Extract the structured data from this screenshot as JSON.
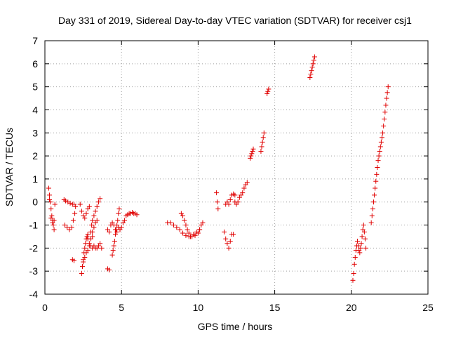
{
  "chart_data": {
    "type": "scatter",
    "title": "Day 331 of 2019, Sidereal Day-to-day VTEC variation (SDTVAR) for receiver csj1",
    "xlabel": "GPS time / hours",
    "ylabel": "SDTVAR / TECUs",
    "xlim": [
      0,
      25
    ],
    "ylim": [
      -4,
      7
    ],
    "xticks": [
      0,
      5,
      10,
      15,
      20,
      25
    ],
    "yticks": [
      -4,
      -3,
      -2,
      -1,
      0,
      1,
      2,
      3,
      4,
      5,
      6,
      7
    ],
    "xtick_labels": [
      "0",
      "5",
      "10",
      "15",
      "20",
      "25"
    ],
    "ytick_labels": [
      "-4",
      "-3",
      "-2",
      "-1",
      "0",
      "1",
      "2",
      "3",
      "4",
      "5",
      "6",
      "7"
    ],
    "grid": true,
    "marker": "plus",
    "color": "#e00000",
    "series": [
      {
        "name": "csj1",
        "segments": [
          [
            [
              0.25,
              0.6
            ],
            [
              0.3,
              0.3
            ],
            [
              0.35,
              0.0
            ],
            [
              0.4,
              -0.3
            ],
            [
              0.45,
              -0.6
            ],
            [
              0.5,
              -0.8
            ],
            [
              0.55,
              -1.0
            ],
            [
              0.6,
              -1.2
            ]
          ],
          [
            [
              0.3,
              0.1
            ],
            [
              0.4,
              -0.7
            ],
            [
              0.5,
              -0.9
            ],
            [
              0.6,
              -0.8
            ],
            [
              0.65,
              -0.1
            ]
          ],
          [
            [
              1.25,
              0.1
            ],
            [
              1.35,
              0.05
            ],
            [
              1.5,
              0.0
            ],
            [
              1.65,
              -0.05
            ],
            [
              1.8,
              -0.1
            ],
            [
              1.9,
              -0.1
            ]
          ],
          [
            [
              1.3,
              -1.0
            ],
            [
              1.45,
              -1.1
            ],
            [
              1.6,
              -1.2
            ],
            [
              1.75,
              -1.1
            ],
            [
              1.85,
              -0.8
            ],
            [
              1.95,
              -0.5
            ],
            [
              2.0,
              -0.2
            ]
          ],
          [
            [
              1.8,
              -2.5
            ],
            [
              1.9,
              -2.55
            ]
          ],
          [
            [
              2.3,
              -0.1
            ],
            [
              2.4,
              -0.4
            ],
            [
              2.5,
              -0.6
            ],
            [
              2.6,
              -0.7
            ],
            [
              2.7,
              -0.5
            ],
            [
              2.8,
              -0.3
            ],
            [
              2.9,
              -0.2
            ]
          ],
          [
            [
              2.4,
              -3.1
            ],
            [
              2.45,
              -2.8
            ],
            [
              2.5,
              -2.5
            ],
            [
              2.55,
              -2.2
            ],
            [
              2.6,
              -2.0
            ],
            [
              2.65,
              -1.8
            ],
            [
              2.7,
              -1.6
            ],
            [
              2.75,
              -1.5
            ],
            [
              2.8,
              -1.4
            ]
          ],
          [
            [
              2.5,
              -2.6
            ],
            [
              2.6,
              -2.4
            ],
            [
              2.7,
              -2.2
            ],
            [
              2.8,
              -2.1
            ],
            [
              2.9,
              -1.9
            ],
            [
              3.0,
              -1.6
            ],
            [
              3.1,
              -1.5
            ]
          ],
          [
            [
              2.8,
              -1.6
            ],
            [
              2.9,
              -1.8
            ],
            [
              3.0,
              -1.9
            ],
            [
              3.1,
              -2.0
            ],
            [
              3.2,
              -1.9
            ],
            [
              3.3,
              -2.0
            ],
            [
              3.4,
              -2.0
            ],
            [
              3.5,
              -1.9
            ],
            [
              3.6,
              -1.8
            ],
            [
              3.7,
              -2.0
            ]
          ],
          [
            [
              3.0,
              -1.3
            ],
            [
              3.05,
              -1.0
            ],
            [
              3.1,
              -0.8
            ],
            [
              3.2,
              -0.6
            ],
            [
              3.3,
              -0.4
            ],
            [
              3.4,
              -0.2
            ],
            [
              3.5,
              0.0
            ],
            [
              3.6,
              0.15
            ]
          ],
          [
            [
              3.1,
              -1.3
            ],
            [
              3.2,
              -1.1
            ],
            [
              3.3,
              -0.9
            ],
            [
              3.4,
              -0.8
            ]
          ],
          [
            [
              4.1,
              -2.9
            ],
            [
              4.2,
              -2.95
            ]
          ],
          [
            [
              4.1,
              -1.2
            ],
            [
              4.2,
              -1.3
            ],
            [
              4.3,
              -1.0
            ],
            [
              4.4,
              -0.9
            ]
          ],
          [
            [
              4.4,
              -2.3
            ],
            [
              4.45,
              -2.1
            ],
            [
              4.5,
              -1.9
            ],
            [
              4.55,
              -1.7
            ],
            [
              4.6,
              -1.4
            ],
            [
              4.65,
              -1.2
            ],
            [
              4.7,
              -1.0
            ],
            [
              4.75,
              -0.8
            ],
            [
              4.8,
              -0.5
            ],
            [
              4.85,
              -0.3
            ]
          ],
          [
            [
              4.5,
              -1.0
            ],
            [
              4.6,
              -1.2
            ],
            [
              4.7,
              -1.3
            ],
            [
              4.8,
              -1.1
            ],
            [
              4.9,
              -1.2
            ],
            [
              5.0,
              -1.1
            ],
            [
              5.1,
              -0.9
            ],
            [
              5.2,
              -0.8
            ],
            [
              5.3,
              -0.6
            ],
            [
              5.4,
              -0.55
            ],
            [
              5.5,
              -0.5
            ],
            [
              5.6,
              -0.5
            ],
            [
              5.7,
              -0.45
            ],
            [
              5.8,
              -0.5
            ],
            [
              5.9,
              -0.5
            ],
            [
              6.0,
              -0.55
            ]
          ],
          [
            [
              8.0,
              -0.9
            ],
            [
              8.2,
              -0.9
            ],
            [
              8.4,
              -1.0
            ],
            [
              8.6,
              -1.1
            ],
            [
              8.8,
              -1.2
            ],
            [
              9.0,
              -1.35
            ],
            [
              9.2,
              -1.45
            ],
            [
              9.4,
              -1.5
            ],
            [
              9.6,
              -1.5
            ],
            [
              9.8,
              -1.45
            ],
            [
              10.0,
              -1.35
            ],
            [
              10.1,
              -1.2
            ],
            [
              10.2,
              -1.0
            ],
            [
              10.3,
              -0.9
            ]
          ],
          [
            [
              8.9,
              -0.5
            ],
            [
              9.0,
              -0.6
            ],
            [
              9.1,
              -0.8
            ],
            [
              9.2,
              -1.0
            ],
            [
              9.3,
              -1.2
            ],
            [
              9.4,
              -1.35
            ],
            [
              9.5,
              -1.5
            ],
            [
              9.7,
              -1.4
            ],
            [
              9.9,
              -1.3
            ],
            [
              10.1,
              -1.2
            ]
          ],
          [
            [
              11.2,
              0.4
            ],
            [
              11.25,
              0.0
            ],
            [
              11.3,
              -0.3
            ]
          ],
          [
            [
              11.7,
              -1.3
            ],
            [
              11.8,
              -1.6
            ],
            [
              11.9,
              -1.8
            ],
            [
              12.0,
              -2.0
            ],
            [
              12.1,
              -1.7
            ],
            [
              12.2,
              -1.4
            ],
            [
              12.3,
              -1.4
            ]
          ],
          [
            [
              11.8,
              -0.1
            ],
            [
              11.9,
              0.0
            ],
            [
              12.0,
              -0.1
            ],
            [
              12.1,
              0.1
            ],
            [
              12.2,
              0.3
            ],
            [
              12.3,
              0.35
            ],
            [
              12.4,
              0.3
            ]
          ],
          [
            [
              12.4,
              0.0
            ],
            [
              12.5,
              -0.1
            ],
            [
              12.6,
              0.0
            ],
            [
              12.7,
              0.2
            ],
            [
              12.8,
              0.3
            ],
            [
              12.9,
              0.4
            ],
            [
              13.0,
              0.6
            ],
            [
              13.1,
              0.75
            ],
            [
              13.2,
              0.85
            ]
          ],
          [
            [
              13.4,
              1.9
            ],
            [
              13.45,
              2.0
            ],
            [
              13.5,
              2.1
            ],
            [
              13.55,
              2.2
            ],
            [
              13.6,
              2.3
            ]
          ],
          [
            [
              14.1,
              2.2
            ],
            [
              14.15,
              2.4
            ],
            [
              14.2,
              2.6
            ],
            [
              14.25,
              2.8
            ],
            [
              14.3,
              3.0
            ]
          ],
          [
            [
              14.5,
              4.7
            ],
            [
              14.55,
              4.8
            ],
            [
              14.6,
              4.9
            ]
          ],
          [
            [
              17.3,
              5.4
            ],
            [
              17.35,
              5.55
            ],
            [
              17.4,
              5.7
            ],
            [
              17.45,
              5.85
            ],
            [
              17.5,
              6.0
            ],
            [
              17.55,
              6.15
            ],
            [
              17.6,
              6.3
            ]
          ],
          [
            [
              20.1,
              -3.4
            ],
            [
              20.15,
              -3.1
            ],
            [
              20.2,
              -2.7
            ],
            [
              20.25,
              -2.4
            ],
            [
              20.3,
              -2.1
            ],
            [
              20.35,
              -1.9
            ],
            [
              20.4,
              -1.7
            ],
            [
              20.45,
              -1.9
            ],
            [
              20.5,
              -2.1
            ],
            [
              20.55,
              -2.2
            ],
            [
              20.6,
              -2.0
            ],
            [
              20.65,
              -1.8
            ],
            [
              20.7,
              -1.5
            ],
            [
              20.75,
              -1.2
            ],
            [
              20.8,
              -1.0
            ],
            [
              20.85,
              -1.3
            ],
            [
              20.9,
              -1.6
            ],
            [
              20.95,
              -2.0
            ]
          ],
          [
            [
              21.3,
              -0.9
            ],
            [
              21.35,
              -0.6
            ],
            [
              21.4,
              -0.3
            ],
            [
              21.45,
              0.0
            ],
            [
              21.5,
              0.3
            ],
            [
              21.55,
              0.6
            ],
            [
              21.6,
              0.9
            ],
            [
              21.65,
              1.2
            ],
            [
              21.7,
              1.5
            ],
            [
              21.75,
              1.8
            ],
            [
              21.8,
              2.0
            ],
            [
              21.85,
              2.2
            ],
            [
              21.9,
              2.4
            ],
            [
              21.95,
              2.6
            ],
            [
              22.0,
              2.8
            ],
            [
              22.05,
              3.0
            ],
            [
              22.1,
              3.3
            ],
            [
              22.15,
              3.6
            ],
            [
              22.2,
              3.9
            ],
            [
              22.25,
              4.2
            ],
            [
              22.3,
              4.5
            ],
            [
              22.35,
              4.75
            ],
            [
              22.4,
              5.0
            ]
          ]
        ]
      }
    ]
  }
}
